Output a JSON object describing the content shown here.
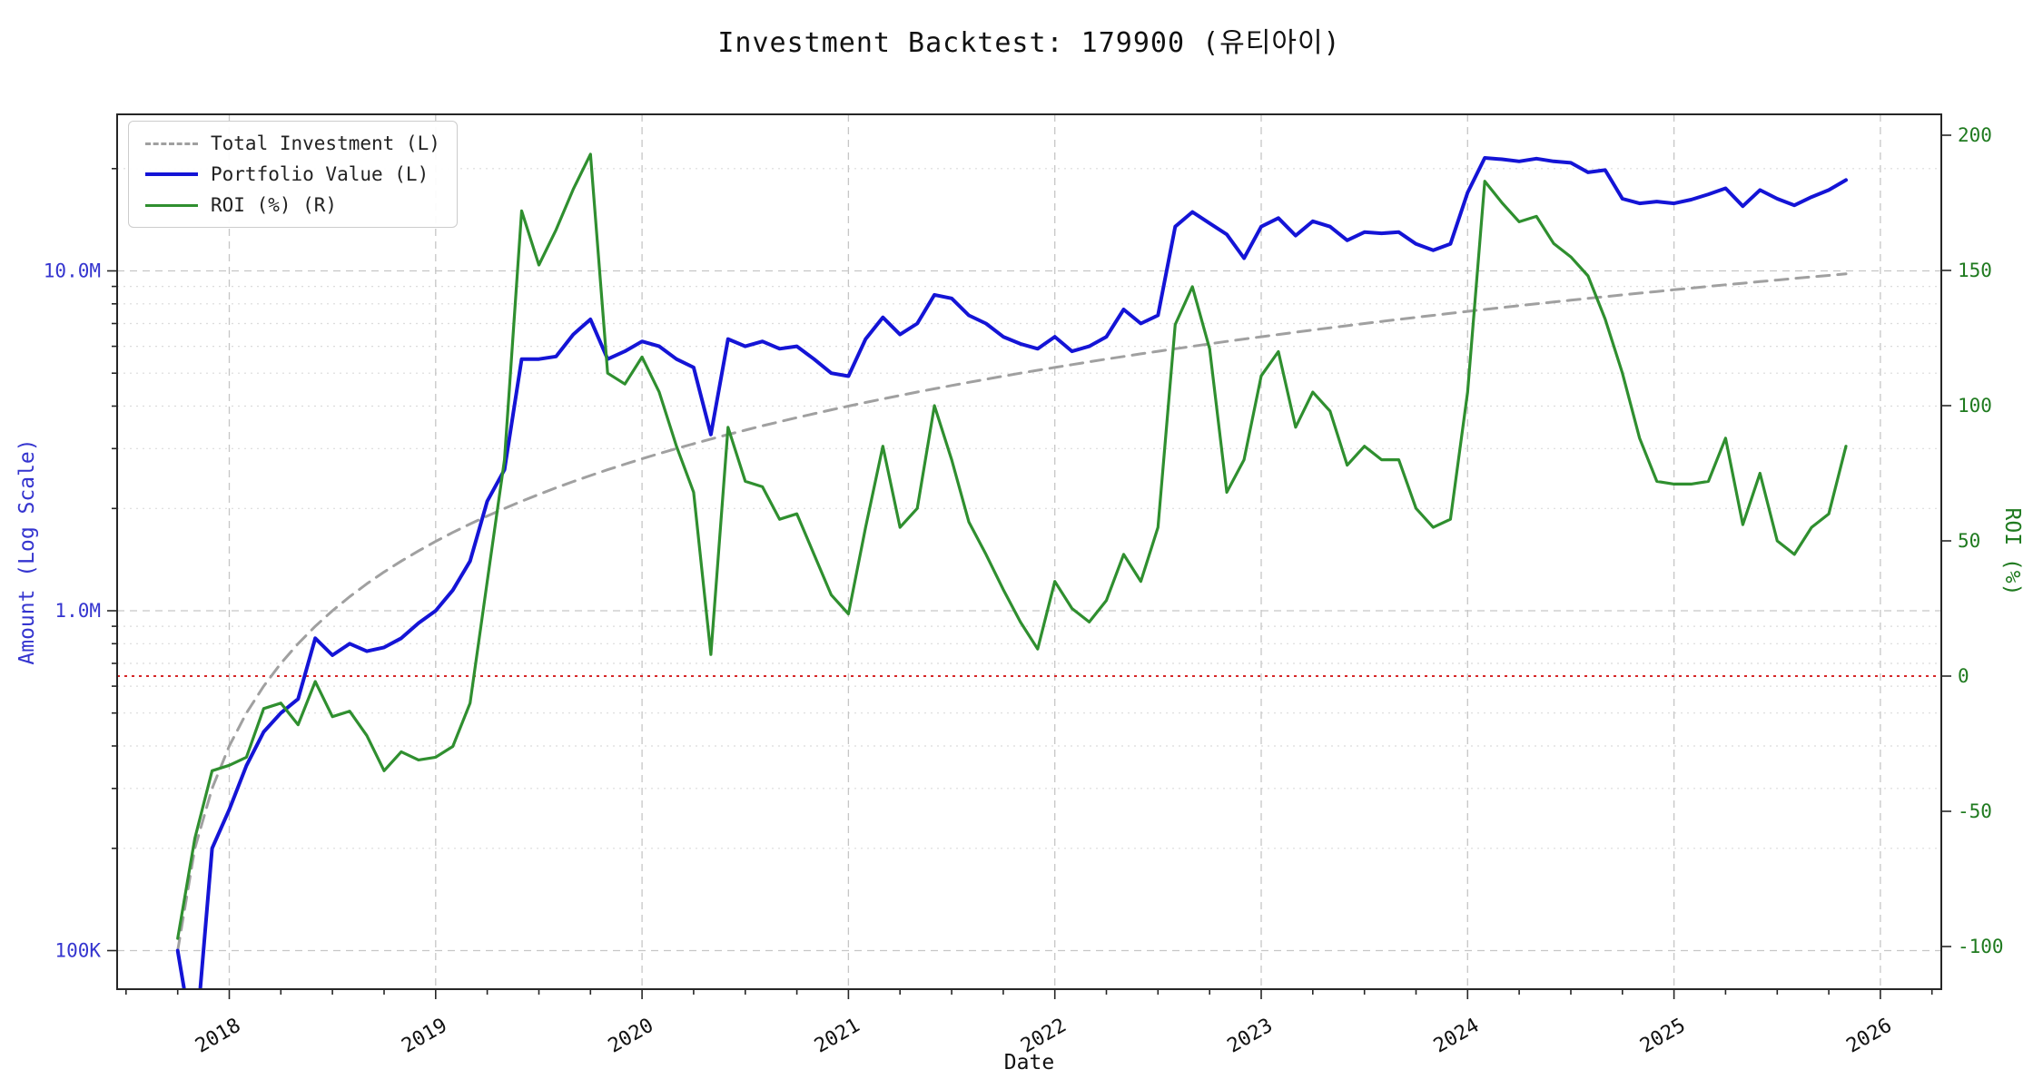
{
  "title": "Investment Backtest: 179900 (유티아이)",
  "axes": {
    "x_label": "Date",
    "y_left_label": "Amount (Log Scale)",
    "y_right_label": "ROI (%)"
  },
  "colors": {
    "total_investment": "#a0a0a0",
    "portfolio_value": "#1414d6",
    "roi": "#2f8f2f",
    "zero_roi_reference": "#d62728",
    "left_axis_text": "#3434cf",
    "right_axis_text": "#1f7a1f",
    "grid": "#c6c6c6"
  },
  "chart_data": {
    "type": "line",
    "title": "Investment Backtest: 179900 (유티아이)",
    "xlabel": "Date",
    "ylabel_left": "Amount (Log Scale)",
    "ylabel_right": "ROI (%)",
    "legend_position": "upper-left",
    "grid": true,
    "x_ticks": [
      2018,
      2019,
      2020,
      2021,
      2022,
      2023,
      2024,
      2025,
      2026
    ],
    "x_range_years": [
      2017.46,
      2026.3
    ],
    "y_left": {
      "scale": "log",
      "unit": "M",
      "tick_labels": [
        "100K",
        "1.0M",
        "10.0M"
      ],
      "tick_values_m": [
        0.1,
        1,
        10
      ],
      "range_m": [
        0.077,
        29.5
      ]
    },
    "y_right": {
      "ticks": [
        -100,
        -50,
        0,
        50,
        100,
        150,
        200
      ],
      "range": [
        -116,
        208
      ]
    },
    "reference_line": {
      "axis": "right",
      "value": 0,
      "style": "dotted",
      "color": "#d62728"
    },
    "months": [
      "2017-10",
      "2017-11",
      "2017-12",
      "2018-01",
      "2018-02",
      "2018-03",
      "2018-04",
      "2018-05",
      "2018-06",
      "2018-07",
      "2018-08",
      "2018-09",
      "2018-10",
      "2018-11",
      "2018-12",
      "2019-01",
      "2019-02",
      "2019-03",
      "2019-04",
      "2019-05",
      "2019-06",
      "2019-07",
      "2019-08",
      "2019-09",
      "2019-10",
      "2019-11",
      "2019-12",
      "2020-01",
      "2020-02",
      "2020-03",
      "2020-04",
      "2020-05",
      "2020-06",
      "2020-07",
      "2020-08",
      "2020-09",
      "2020-10",
      "2020-11",
      "2020-12",
      "2021-01",
      "2021-02",
      "2021-03",
      "2021-04",
      "2021-05",
      "2021-06",
      "2021-07",
      "2021-08",
      "2021-09",
      "2021-10",
      "2021-11",
      "2021-12",
      "2022-01",
      "2022-02",
      "2022-03",
      "2022-04",
      "2022-05",
      "2022-06",
      "2022-07",
      "2022-08",
      "2022-09",
      "2022-10",
      "2022-11",
      "2022-12",
      "2023-01",
      "2023-02",
      "2023-03",
      "2023-04",
      "2023-05",
      "2023-06",
      "2023-07",
      "2023-08",
      "2023-09",
      "2023-10",
      "2023-11",
      "2023-12",
      "2024-01",
      "2024-02",
      "2024-03",
      "2024-04",
      "2024-05",
      "2024-06",
      "2024-07",
      "2024-08",
      "2024-09",
      "2024-10",
      "2024-11",
      "2024-12",
      "2025-01",
      "2025-02",
      "2025-03",
      "2025-04",
      "2025-05",
      "2025-06",
      "2025-07",
      "2025-08",
      "2025-09",
      "2025-10",
      "2025-11"
    ],
    "series": [
      {
        "name": "Total Investment (L)",
        "axis": "left",
        "unit": "M",
        "style": "dashed",
        "color": "#a0a0a0",
        "values": [
          0.1,
          0.2,
          0.3,
          0.4,
          0.5,
          0.6,
          0.7,
          0.8,
          0.9,
          1.0,
          1.1,
          1.2,
          1.3,
          1.4,
          1.5,
          1.6,
          1.7,
          1.8,
          1.9,
          2.0,
          2.1,
          2.2,
          2.3,
          2.4,
          2.5,
          2.6,
          2.7,
          2.8,
          2.9,
          3.0,
          3.1,
          3.2,
          3.3,
          3.4,
          3.5,
          3.6,
          3.7,
          3.8,
          3.9,
          4.0,
          4.1,
          4.2,
          4.3,
          4.4,
          4.5,
          4.6,
          4.7,
          4.8,
          4.9,
          5.0,
          5.1,
          5.2,
          5.3,
          5.4,
          5.5,
          5.6,
          5.7,
          5.8,
          5.9,
          6.0,
          6.1,
          6.2,
          6.3,
          6.4,
          6.5,
          6.6,
          6.7,
          6.8,
          6.9,
          7.0,
          7.1,
          7.2,
          7.3,
          7.4,
          7.5,
          7.6,
          7.7,
          7.8,
          7.9,
          8.0,
          8.1,
          8.2,
          8.3,
          8.4,
          8.5,
          8.6,
          8.7,
          8.8,
          8.9,
          9.0,
          9.1,
          9.2,
          9.3,
          9.4,
          9.5,
          9.6,
          9.7,
          9.8
        ]
      },
      {
        "name": "Portfolio Value (L)",
        "axis": "left",
        "unit": "M",
        "style": "solid",
        "color": "#1414d6",
        "values": [
          0.1,
          0.05,
          0.2,
          0.26,
          0.35,
          0.44,
          0.5,
          0.55,
          0.83,
          0.74,
          0.8,
          0.76,
          0.78,
          0.83,
          0.92,
          1.0,
          1.15,
          1.4,
          2.1,
          2.6,
          5.5,
          5.5,
          5.6,
          6.5,
          7.2,
          5.5,
          5.8,
          6.2,
          6.0,
          5.5,
          5.2,
          3.3,
          6.3,
          6.0,
          6.2,
          5.9,
          6.0,
          5.5,
          5.0,
          4.9,
          6.3,
          7.3,
          6.5,
          7.0,
          8.5,
          8.3,
          7.4,
          7.0,
          6.4,
          6.1,
          5.9,
          6.4,
          5.8,
          6.0,
          6.4,
          7.7,
          7.0,
          7.4,
          13.5,
          14.9,
          13.8,
          12.8,
          10.9,
          13.5,
          14.3,
          12.7,
          14.0,
          13.5,
          12.3,
          13.0,
          12.9,
          13.0,
          12.0,
          11.5,
          12.0,
          17.0,
          21.5,
          21.3,
          21.0,
          21.4,
          21.0,
          20.8,
          19.5,
          19.8,
          16.3,
          15.8,
          16.0,
          15.8,
          16.2,
          16.8,
          17.5,
          15.5,
          17.3,
          16.3,
          15.6,
          16.5,
          17.3,
          18.5
        ]
      },
      {
        "name": "ROI (%) (R)",
        "axis": "right",
        "unit": "%",
        "style": "solid",
        "color": "#2f8f2f",
        "values": [
          -97,
          -60,
          -35,
          -33,
          -30,
          -12,
          -10,
          -18,
          -2,
          -15,
          -13,
          -22,
          -35,
          -28,
          -31,
          -30,
          -26,
          -10,
          35,
          80,
          172,
          152,
          165,
          180,
          193,
          112,
          108,
          118,
          105,
          85,
          68,
          8,
          92,
          72,
          70,
          58,
          60,
          45,
          30,
          23,
          55,
          85,
          55,
          62,
          100,
          80,
          57,
          45,
          32,
          20,
          10,
          35,
          25,
          20,
          28,
          45,
          35,
          55,
          130,
          144,
          121,
          68,
          80,
          111,
          120,
          92,
          105,
          98,
          78,
          85,
          80,
          80,
          62,
          55,
          58,
          105,
          183,
          175,
          168,
          170,
          160,
          155,
          148,
          132,
          112,
          88,
          72,
          71,
          71,
          72,
          88,
          56,
          75,
          50,
          45,
          55,
          60,
          85
        ]
      }
    ]
  }
}
